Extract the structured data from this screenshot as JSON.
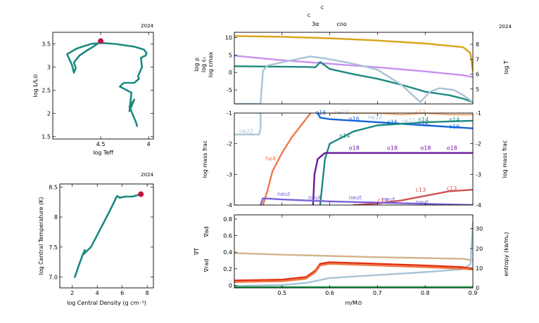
{
  "colors": {
    "teal": "#1b8a80",
    "red": "#c0143c",
    "lilac": "#c890ee",
    "gold": "#d9a318",
    "lightblue": "#a8c4d6",
    "blue": "#1464d6",
    "purple": "#6a1a9a",
    "orange": "#f07848",
    "tan": "#d2b48c",
    "nablared": "#e03010",
    "green": "#20a050",
    "neutpurple": "#7860d8",
    "c13red": "#d05050"
  },
  "chart_data": [
    {
      "id": "hr",
      "type": "line",
      "year": "2024",
      "xlabel": "log Teff",
      "ylabel": "log L/L⊙",
      "xlim": [
        5.0,
        3.95
      ],
      "ylim": [
        1.45,
        3.75
      ],
      "xticks": [
        {
          "v": 4.5,
          "t": "4.5"
        },
        {
          "v": 4.0,
          "t": "4"
        }
      ],
      "yticks": [
        {
          "v": 1.5,
          "t": "1.5"
        },
        {
          "v": 2,
          "t": "2"
        },
        {
          "v": 2.5,
          "t": "2.5"
        },
        {
          "v": 3,
          "t": "3"
        },
        {
          "v": 3.5,
          "t": "3.5"
        }
      ],
      "series": [
        {
          "color": "#1b8a80",
          "x": [
            4.12,
            4.13,
            4.17,
            4.2,
            4.15,
            4.2,
            4.18,
            4.3,
            4.26,
            4.15,
            4.1,
            4.11,
            4.07,
            4.08,
            4.03,
            4.02,
            4.05,
            4.15,
            4.35,
            4.5,
            4.6,
            4.75,
            4.85,
            4.8,
            4.78,
            4.76,
            4.78,
            4.76,
            4.72,
            4.65,
            4.57,
            4.5
          ],
          "y": [
            1.73,
            1.8,
            2.0,
            2.15,
            2.3,
            2.05,
            2.45,
            2.58,
            2.66,
            2.66,
            2.75,
            2.8,
            3.0,
            3.2,
            3.25,
            3.3,
            3.38,
            3.44,
            3.5,
            3.52,
            3.5,
            3.4,
            3.28,
            3.05,
            2.88,
            2.98,
            3.1,
            3.15,
            3.25,
            3.35,
            3.45,
            3.55
          ]
        }
      ],
      "marker": {
        "x": 4.5,
        "y": 3.56,
        "color": "#c0143c"
      }
    },
    {
      "id": "rhot",
      "type": "line",
      "year": "2024",
      "xlabel": "log Central Density (g cm⁻³)",
      "ylabel": "log Central Temperature (K)",
      "xlim": [
        1.0,
        8.5
      ],
      "ylim": [
        6.82,
        8.55
      ],
      "xticks": [
        {
          "v": 2,
          "t": "2"
        },
        {
          "v": 4,
          "t": "4"
        },
        {
          "v": 6,
          "t": "6"
        },
        {
          "v": 8,
          "t": "8"
        }
      ],
      "yticks": [
        {
          "v": 7.0,
          "t": "7.0"
        },
        {
          "v": 7.5,
          "t": "7.5"
        },
        {
          "v": 8,
          "t": "8"
        },
        {
          "v": 8.5,
          "t": "8.5"
        }
      ],
      "series": [
        {
          "color": "#1b8a80",
          "x": [
            2.2,
            2.5,
            2.85,
            3.0,
            2.9,
            3.1,
            3.5,
            4.0,
            4.5,
            5.0,
            5.4,
            5.5,
            5.6,
            5.8,
            6.2,
            6.8,
            7.5
          ],
          "y": [
            7.0,
            7.18,
            7.38,
            7.45,
            7.38,
            7.42,
            7.5,
            7.7,
            7.9,
            8.1,
            8.27,
            8.32,
            8.35,
            8.32,
            8.34,
            8.34,
            8.38
          ]
        }
      ],
      "marker": {
        "x": 7.5,
        "y": 8.38,
        "color": "#c0143c"
      }
    },
    {
      "id": "top",
      "type": "line",
      "year": "2024",
      "xlim": [
        0.4,
        0.9
      ],
      "ylim": [
        -9,
        11.5
      ],
      "y2lim": [
        4,
        8.8
      ],
      "yticks": [
        {
          "v": -5,
          "t": "-5"
        },
        {
          "v": 0,
          "t": "0"
        },
        {
          "v": 5,
          "t": "5"
        },
        {
          "v": 10,
          "t": "10"
        }
      ],
      "y2ticks": [
        {
          "v": 5,
          "t": "5"
        },
        {
          "v": 6,
          "t": "6"
        },
        {
          "v": 7,
          "t": "7"
        },
        {
          "v": 8,
          "t": "8"
        }
      ],
      "ylabels": [
        {
          "text": "log ρ",
          "color": "#c890ee"
        },
        {
          "text": "log εₙ",
          "color": "#1b8a80"
        },
        {
          "text": "log εmax",
          "color": "#a8c4d6"
        }
      ],
      "y2label": {
        "text": "log T",
        "color": "#d9a318"
      },
      "top_labels": [
        {
          "text": "c",
          "v": 0.555
        },
        {
          "text": "c",
          "v": 0.555
        },
        {
          "text": "3α",
          "v": 0.57
        },
        {
          "text": "cno",
          "v": 0.625
        }
      ],
      "series": [
        {
          "name": "log T",
          "axis": "y2",
          "color": "#d9a318",
          "x": [
            0.4,
            0.5,
            0.6,
            0.7,
            0.8,
            0.88,
            0.895,
            0.9
          ],
          "y": [
            8.55,
            8.5,
            8.4,
            8.25,
            8.05,
            7.8,
            7.4,
            6.2
          ]
        },
        {
          "name": "log rho",
          "axis": "y",
          "color": "#c890ee",
          "x": [
            0.4,
            0.5,
            0.6,
            0.7,
            0.8,
            0.88,
            0.9
          ],
          "y": [
            4.8,
            3.5,
            2.5,
            1.5,
            0.3,
            -0.8,
            -1.3
          ]
        },
        {
          "name": "log eps_nuc",
          "axis": "y",
          "color": "#1b8a80",
          "x": [
            0.4,
            0.55,
            0.57,
            0.58,
            0.6,
            0.65,
            0.7,
            0.75,
            0.8,
            0.85,
            0.88,
            0.9
          ],
          "y": [
            1.8,
            1.6,
            1.5,
            3.0,
            1.0,
            -0.5,
            -1.8,
            -3.5,
            -5.5,
            -6.5,
            -7.5,
            -8.5
          ]
        },
        {
          "name": "log eps_max",
          "axis": "y",
          "color": "#a8c4d6",
          "x": [
            0.4,
            0.455,
            0.46,
            0.47,
            0.52,
            0.56,
            0.6,
            0.65,
            0.7,
            0.75,
            0.79,
            0.81,
            0.83,
            0.86,
            0.88,
            0.9
          ],
          "y": [
            -9,
            -9,
            0.5,
            2.0,
            3.5,
            4.6,
            3.8,
            2.5,
            0.8,
            -3.5,
            -8.5,
            -5.5,
            -4.5,
            -5.0,
            -6.5,
            -8.5
          ]
        }
      ]
    },
    {
      "id": "mid",
      "type": "line",
      "xlim": [
        0.4,
        0.9
      ],
      "ylim": [
        -4,
        -1
      ],
      "ylabel": "log mass frac",
      "y2label": "log mass frac",
      "yticks": [
        {
          "v": -4,
          "t": "-4"
        },
        {
          "v": -3,
          "t": "-3"
        },
        {
          "v": -2,
          "t": "-2"
        },
        {
          "v": -1,
          "t": "-1"
        }
      ],
      "series": [
        {
          "name": "ne22",
          "color": "#a8c4d6",
          "x": [
            0.4,
            0.452,
            0.455,
            0.455
          ],
          "y": [
            -1.7,
            -1.7,
            -1.5,
            -1.0
          ]
        },
        {
          "name": "he4",
          "color": "#f07848",
          "x": [
            0.46,
            0.47,
            0.48,
            0.5,
            0.52,
            0.54,
            0.56
          ],
          "y": [
            -4,
            -3.5,
            -2.9,
            -2.3,
            -1.8,
            -1.4,
            -1.0
          ]
        },
        {
          "name": "c12",
          "color": "#f0b080",
          "x": [
            0.6,
            0.7,
            0.75,
            0.8,
            0.85,
            0.9
          ],
          "y": [
            -1.0,
            -1.0,
            -1.05,
            -1.0,
            -1.05,
            -1.05
          ]
        },
        {
          "name": "o16",
          "color": "#1464d6",
          "x": [
            0.575,
            0.58,
            0.6,
            0.7,
            0.8,
            0.9
          ],
          "y": [
            -1.0,
            -1.15,
            -1.2,
            -1.3,
            -1.4,
            -1.5
          ]
        },
        {
          "name": "n14",
          "color": "#1b8a80",
          "x": [
            0.58,
            0.59,
            0.6,
            0.65,
            0.7,
            0.8,
            0.9
          ],
          "y": [
            -4,
            -2.5,
            -2.0,
            -1.6,
            -1.4,
            -1.3,
            -1.25
          ]
        },
        {
          "name": "o18",
          "color": "#6a1a9a",
          "x": [
            0.565,
            0.568,
            0.575,
            0.59,
            0.65,
            0.7,
            0.8,
            0.9
          ],
          "y": [
            -4,
            -3.0,
            -2.5,
            -2.3,
            -2.3,
            -2.3,
            -2.3,
            -2.3
          ]
        },
        {
          "name": "c13",
          "color": "#d05050",
          "x": [
            0.65,
            0.7,
            0.75,
            0.8,
            0.85,
            0.9
          ],
          "y": [
            -4,
            -3.95,
            -3.85,
            -3.7,
            -3.55,
            -3.5
          ]
        },
        {
          "name": "neut",
          "color": "#7860d8",
          "x": [
            0.455,
            0.46,
            0.5,
            0.6,
            0.7,
            0.8,
            0.9
          ],
          "y": [
            -4,
            -3.78,
            -3.82,
            -3.88,
            -3.92,
            -3.96,
            -4.0
          ]
        }
      ],
      "labels": [
        {
          "text": "ne22",
          "x": 0.41,
          "y": -1.65,
          "color": "#a8c4d6"
        },
        {
          "text": "he4",
          "x": 0.465,
          "y": -2.55,
          "color": "#f07848"
        },
        {
          "text": "o16",
          "x": 0.57,
          "y": -1.05,
          "color": "#1464d6"
        },
        {
          "text": "ne22",
          "x": 0.61,
          "y": -1.03,
          "color": "#a8c4d6"
        },
        {
          "text": "o16",
          "x": 0.64,
          "y": -1.25,
          "color": "#1464d6"
        },
        {
          "text": "ne22",
          "x": 0.68,
          "y": -1.2,
          "color": "#a8c4d6"
        },
        {
          "text": "o16",
          "x": 0.72,
          "y": -1.36,
          "color": "#1464d6"
        },
        {
          "text": "c12",
          "x": 0.78,
          "y": -1.02,
          "color": "#f0b080"
        },
        {
          "text": "n14",
          "x": 0.785,
          "y": -1.28,
          "color": "#1b8a80"
        },
        {
          "text": "o16",
          "x": 0.785,
          "y": -1.42,
          "color": "#1464d6"
        },
        {
          "text": "ne22",
          "x": 0.75,
          "y": -1.32,
          "color": "#a8c4d6"
        },
        {
          "text": "n14",
          "x": 0.85,
          "y": -1.28,
          "color": "#1b8a80"
        },
        {
          "text": "o16",
          "x": 0.85,
          "y": -1.5,
          "color": "#1464d6"
        },
        {
          "text": "n14",
          "x": 0.62,
          "y": -1.8,
          "color": "#1b8a80"
        },
        {
          "text": "o18",
          "x": 0.64,
          "y": -2.2,
          "color": "#6a1a9a"
        },
        {
          "text": "o18",
          "x": 0.72,
          "y": -2.2,
          "color": "#6a1a9a"
        },
        {
          "text": "o18",
          "x": 0.79,
          "y": -2.2,
          "color": "#6a1a9a"
        },
        {
          "text": "o18",
          "x": 0.845,
          "y": -2.2,
          "color": "#6a1a9a"
        },
        {
          "text": "c13",
          "x": 0.78,
          "y": -3.57,
          "color": "#d05050"
        },
        {
          "text": "c13",
          "x": 0.845,
          "y": -3.52,
          "color": "#d05050"
        },
        {
          "text": "c13",
          "x": 0.7,
          "y": -3.92,
          "color": "#d05050"
        },
        {
          "text": "neut",
          "x": 0.49,
          "y": -3.7,
          "color": "#7860d8"
        },
        {
          "text": "neut",
          "x": 0.555,
          "y": -3.82,
          "color": "#7860d8"
        },
        {
          "text": "neut",
          "x": 0.64,
          "y": -3.82,
          "color": "#7860d8"
        },
        {
          "text": "neut",
          "x": 0.71,
          "y": -3.87,
          "color": "#7860d8"
        },
        {
          "text": "neut",
          "x": 0.78,
          "y": -3.96,
          "color": "#7860d8"
        }
      ]
    },
    {
      "id": "bot",
      "type": "line",
      "xlim": [
        0.4,
        0.9
      ],
      "ylim": [
        -0.03,
        0.85
      ],
      "y2lim": [
        0,
        37
      ],
      "xlabel": "m/M⊙",
      "xticks": [
        {
          "v": 0.5,
          "t": "0.5"
        },
        {
          "v": 0.6,
          "t": "0.6"
        },
        {
          "v": 0.7,
          "t": "0.7"
        },
        {
          "v": 0.8,
          "t": "0.8"
        },
        {
          "v": 0.9,
          "t": "0.9"
        }
      ],
      "yticks": [
        {
          "v": 0,
          "t": "0"
        },
        {
          "v": 0.2,
          "t": "0.2"
        },
        {
          "v": 0.4,
          "t": "0.4"
        },
        {
          "v": 0.6,
          "t": "0.6"
        },
        {
          "v": 0.8,
          "t": "0.8"
        }
      ],
      "y2ticks": [
        {
          "v": 0,
          "t": "0"
        },
        {
          "v": 10,
          "t": "10"
        },
        {
          "v": 20,
          "t": "20"
        },
        {
          "v": 30,
          "t": "30"
        }
      ],
      "ylabels": [
        {
          "text": "∇ad",
          "color": "#f07848"
        },
        {
          "text": "∇T",
          "color": "#e03010"
        },
        {
          "text": "∇rad",
          "color": "#f07848"
        }
      ],
      "y2label": {
        "text": "entropy (kʙ/mₚ)",
        "color": "#000000"
      },
      "series": [
        {
          "name": "grad_ad",
          "axis": "y",
          "color": "#d2b48c",
          "x": [
            0.4,
            0.5,
            0.6,
            0.7,
            0.8,
            0.88,
            0.9
          ],
          "y": [
            0.39,
            0.37,
            0.355,
            0.34,
            0.33,
            0.32,
            0.3
          ]
        },
        {
          "name": "entropy",
          "axis": "y2",
          "color": "#a8c4d6",
          "x": [
            0.4,
            0.5,
            0.55,
            0.58,
            0.6,
            0.7,
            0.8,
            0.88,
            0.895,
            0.9
          ],
          "y": [
            1.0,
            1.5,
            2.5,
            4.0,
            5.0,
            6.5,
            8.0,
            9.5,
            12,
            33
          ]
        },
        {
          "name": "grad_T",
          "axis": "y",
          "color": "#e03010",
          "x": [
            0.4,
            0.5,
            0.55,
            0.57,
            0.58,
            0.6,
            0.7,
            0.8,
            0.88,
            0.9
          ],
          "y": [
            0.06,
            0.07,
            0.1,
            0.18,
            0.26,
            0.28,
            0.26,
            0.24,
            0.22,
            0.2
          ]
        },
        {
          "name": "grad_rad",
          "axis": "y",
          "color": "#f07848",
          "x": [
            0.4,
            0.5,
            0.55,
            0.57,
            0.58,
            0.6,
            0.7,
            0.8,
            0.88,
            0.9
          ],
          "y": [
            0.04,
            0.05,
            0.08,
            0.16,
            0.24,
            0.26,
            0.24,
            0.22,
            0.2,
            0.19
          ]
        },
        {
          "name": "green",
          "axis": "y",
          "color": "#20a050",
          "x": [
            0.4,
            0.9
          ],
          "y": [
            -0.02,
            -0.02
          ]
        }
      ]
    }
  ]
}
